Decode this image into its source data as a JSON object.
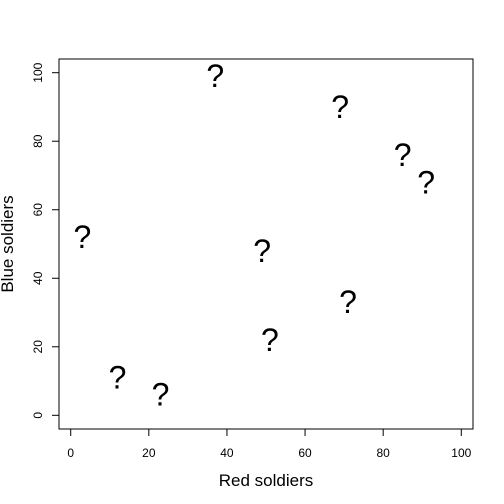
{
  "chart_data": {
    "type": "scatter",
    "title": "",
    "xlabel": "Red soldiers",
    "ylabel": "Blue soldiers",
    "xlim": [
      -3,
      103
    ],
    "ylim": [
      -4,
      104
    ],
    "xticks": [
      0,
      20,
      40,
      60,
      80,
      100
    ],
    "yticks": [
      0,
      20,
      40,
      60,
      80,
      100
    ],
    "grid": false,
    "marker_glyph": "?",
    "points": [
      {
        "x": 37,
        "y": 99
      },
      {
        "x": 69,
        "y": 90
      },
      {
        "x": 85,
        "y": 76
      },
      {
        "x": 91,
        "y": 68
      },
      {
        "x": 3,
        "y": 52
      },
      {
        "x": 49,
        "y": 48
      },
      {
        "x": 71,
        "y": 33
      },
      {
        "x": 51,
        "y": 22
      },
      {
        "x": 12,
        "y": 11
      },
      {
        "x": 23,
        "y": 6
      }
    ]
  }
}
